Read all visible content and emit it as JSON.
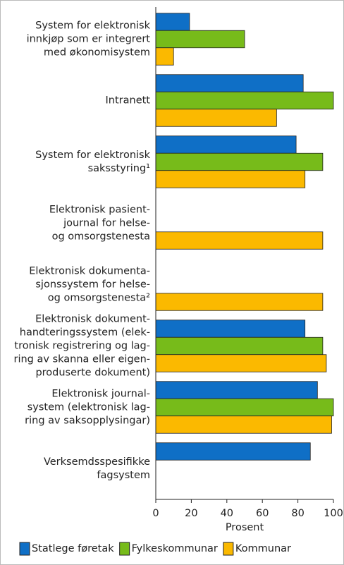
{
  "chart_data": {
    "type": "bar",
    "orientation": "horizontal",
    "categories": [
      "System for elektronisk\ninnkjøp som er integrert\nmed økonomisystem",
      "Intranett",
      "System for elektronisk\nsaksstyring¹",
      "Elektronisk pasient-\njournal for helse-\nog omsorgstenesta",
      "Elektronisk dokumenta-\nsjonssystem for helse-\nog omsorgstenesta²",
      "Elektronisk dokument-\nhandteringssystem (elek-\ntronisk registrering og lag-\nring av skanna eller eigen-\nproduserte dokument)",
      "Elektronisk journal-\nsystem (elektronisk lag-\nring av saksopplysingar)",
      "Verksemdsspesifikke\nfagsystem"
    ],
    "series": [
      {
        "name": "Statlege føretak",
        "color": "#0f6fc6",
        "values": [
          19,
          83,
          79,
          null,
          null,
          84,
          91,
          87
        ]
      },
      {
        "name": "Fylkeskommunar",
        "color": "#77bb1a",
        "values": [
          50,
          100,
          94,
          null,
          null,
          94,
          100,
          null
        ]
      },
      {
        "name": "Kommunar",
        "color": "#fbb900",
        "values": [
          10,
          68,
          84,
          94,
          94,
          96,
          99,
          null
        ]
      }
    ],
    "xlim": [
      0,
      100
    ],
    "xticks": [
      0,
      20,
      40,
      60,
      80,
      100
    ],
    "xlabel": "Prosent",
    "legend": "bottom"
  }
}
